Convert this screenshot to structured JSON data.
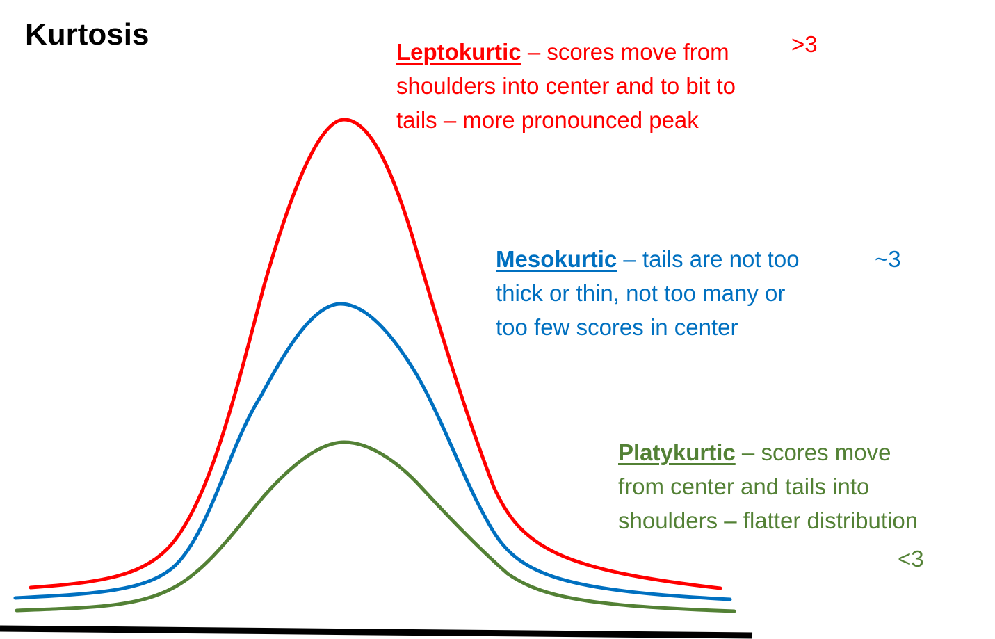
{
  "title": "Kurtosis",
  "colors": {
    "leptokurtic": "#ff0000",
    "mesokurtic": "#0070c0",
    "platykurtic": "#538135",
    "baseline": "#000000",
    "title": "#000000"
  },
  "curves": [
    {
      "id": "leptokurtic",
      "term": "Leptokurtic",
      "lines": [
        " – scores move from",
        "shoulders into center and to bit to",
        "tails – more pronounced peak"
      ],
      "value": ">3"
    },
    {
      "id": "mesokurtic",
      "term": "Mesokurtic",
      "lines": [
        " – tails are not too",
        "thick or thin, not too many or",
        "too few scores in center"
      ],
      "value": "~3"
    },
    {
      "id": "platykurtic",
      "term": "Platykurtic",
      "lines": [
        " – scores move",
        "from center and tails into",
        "shoulders – flatter distribution"
      ],
      "value": "<3"
    }
  ]
}
